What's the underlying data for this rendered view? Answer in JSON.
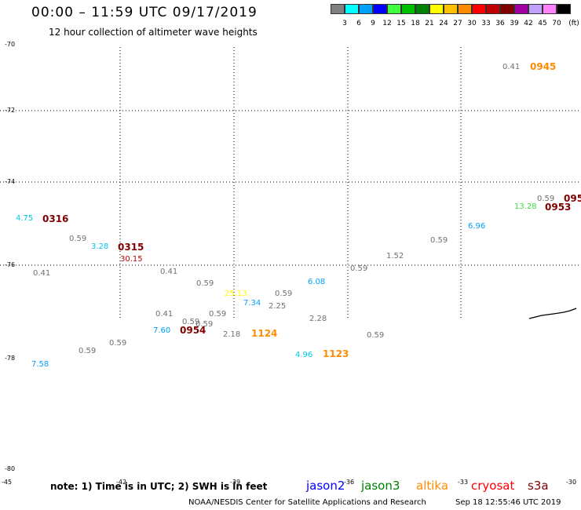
{
  "header": {
    "title": "00:00 – 11:59 UTC 09/17/2019",
    "subtitle": "12 hour collection of altimeter wave heights"
  },
  "color_scale": {
    "labels": [
      "3",
      "6",
      "9",
      "12",
      "15",
      "18",
      "21",
      "24",
      "27",
      "30",
      "33",
      "36",
      "39",
      "42",
      "45",
      "70"
    ],
    "unit": "(ft)",
    "colors": [
      "#808080",
      "#00ffff",
      "#00a0ff",
      "#0000ff",
      "#40ff40",
      "#00c000",
      "#008000",
      "#ffff00",
      "#ffc000",
      "#ff8c00",
      "#ff0000",
      "#c00000",
      "#800000",
      "#a000a0",
      "#c0a0ff",
      "#ff80ff",
      "#000000"
    ]
  },
  "axes": {
    "lat_labels": [
      "-70",
      "-72",
      "-74",
      "-76",
      "-78",
      "-80"
    ],
    "lon_labels": [
      "-45",
      "-42",
      "-39",
      "-36",
      "-33",
      "-30"
    ]
  },
  "wave_heights": [
    {
      "text": "0.41",
      "color": "#707070"
    },
    {
      "text": "4.75",
      "color": "#00c8e8"
    },
    {
      "text": "0.59",
      "color": "#707070"
    },
    {
      "text": "3.28",
      "color": "#00c8e8"
    },
    {
      "text": "30.15",
      "color": "#c00000"
    },
    {
      "text": "0.41",
      "color": "#707070"
    },
    {
      "text": "0.59",
      "color": "#707070"
    },
    {
      "text": "0.59",
      "color": "#707070"
    },
    {
      "text": "25.13",
      "color": "#ffff00"
    },
    {
      "text": "7.34",
      "color": "#00a0ff"
    },
    {
      "text": "0.59",
      "color": "#707070"
    },
    {
      "text": "2.25",
      "color": "#707070"
    },
    {
      "text": "6.08",
      "color": "#00a0ff"
    },
    {
      "text": "0.59",
      "color": "#707070"
    },
    {
      "text": "1.52",
      "color": "#707070"
    },
    {
      "text": "0.59",
      "color": "#707070"
    },
    {
      "text": "6.96",
      "color": "#00a0ff"
    },
    {
      "text": "13.28",
      "color": "#40e040"
    },
    {
      "text": "0.59",
      "color": "#707070"
    },
    {
      "text": "0.41",
      "color": "#707070"
    },
    {
      "text": "0.59",
      "color": "#707070"
    },
    {
      "text": "0.41",
      "color": "#707070"
    },
    {
      "text": "0.59",
      "color": "#707070"
    },
    {
      "text": "7.60",
      "color": "#00a0ff"
    },
    {
      "text": "2.18",
      "color": "#707070"
    },
    {
      "text": "2.28",
      "color": "#707070"
    },
    {
      "text": "0.59",
      "color": "#707070"
    },
    {
      "text": "0.59",
      "color": "#707070"
    },
    {
      "text": "0.59",
      "color": "#707070"
    },
    {
      "text": "4.96",
      "color": "#00c8e8"
    },
    {
      "text": "7.58",
      "color": "#00a0ff"
    }
  ],
  "pass_times": [
    {
      "text": "0316",
      "color": "#800000"
    },
    {
      "text": "0315",
      "color": "#800000"
    },
    {
      "text": "0954",
      "color": "#800000"
    },
    {
      "text": "1124",
      "color": "#ff8c00"
    },
    {
      "text": "1123",
      "color": "#ff8c00"
    },
    {
      "text": "0945",
      "color": "#ff8c00"
    },
    {
      "text": "0953",
      "color": "#800000"
    },
    {
      "text": "095",
      "color": "#800000"
    }
  ],
  "footer": {
    "note": "note: 1) Time is in UTC; 2) SWH is in feet",
    "satellites": [
      {
        "name": "jason2",
        "color": "#0000ff"
      },
      {
        "name": "jason3",
        "color": "#008000"
      },
      {
        "name": "altika",
        "color": "#ff8c00"
      },
      {
        "name": "cryosat",
        "color": "#ff0000"
      },
      {
        "name": "s3a",
        "color": "#800000"
      }
    ],
    "credit": "NOAA/NESDIS Center for Satellite Applications and Research",
    "timestamp": "Sep 18 12:55:46 UTC 2019"
  }
}
